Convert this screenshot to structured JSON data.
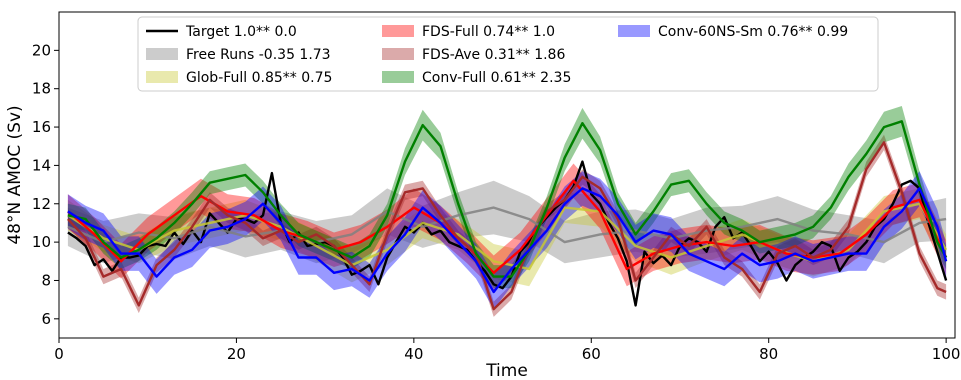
{
  "chart_data": {
    "type": "line",
    "title": "",
    "xlabel": "Time",
    "ylabel": "48°N AMOC (Sv)",
    "xlim": [
      0,
      101
    ],
    "ylim": [
      5,
      22
    ],
    "xticks": [
      0,
      20,
      40,
      60,
      80,
      100
    ],
    "yticks": [
      6,
      8,
      10,
      12,
      14,
      16,
      18,
      20
    ],
    "xtick_labels": [
      "0",
      "20",
      "40",
      "60",
      "80",
      "100"
    ],
    "ytick_labels": [
      "6",
      "8",
      "10",
      "12",
      "14",
      "16",
      "18",
      "20"
    ],
    "legend": {
      "placement": "top",
      "columns": 3
    },
    "series": [
      {
        "name": "Target 1.0** 0.0",
        "color": "#000000",
        "style": "line",
        "x": [
          1,
          2,
          3,
          4,
          5,
          6,
          7,
          8,
          9,
          10,
          11,
          12,
          13,
          14,
          15,
          16,
          17,
          18,
          19,
          20,
          21,
          22,
          23,
          24,
          25,
          26,
          27,
          28,
          29,
          30,
          31,
          32,
          33,
          34,
          35,
          36,
          37,
          38,
          39,
          40,
          41,
          42,
          43,
          44,
          45,
          46,
          47,
          48,
          49,
          50,
          51,
          52,
          53,
          54,
          55,
          56,
          57,
          58,
          59,
          60,
          61,
          62,
          63,
          64,
          65,
          66,
          67,
          68,
          69,
          70,
          71,
          72,
          73,
          74,
          75,
          76,
          77,
          78,
          79,
          80,
          81,
          82,
          83,
          84,
          85,
          86,
          87,
          88,
          89,
          90,
          91,
          92,
          93,
          94,
          95,
          96,
          97,
          98,
          99,
          100
        ],
        "values": [
          10.5,
          10.2,
          9.8,
          8.8,
          9.1,
          8.5,
          9.2,
          9.2,
          9.3,
          9.8,
          9.9,
          9.8,
          10.5,
          9.9,
          10.6,
          10.0,
          11.5,
          11.0,
          10.5,
          11.2,
          11.2,
          11.0,
          11.4,
          13.6,
          11.0,
          10.0,
          10.5,
          9.8,
          9.9,
          10.0,
          9.8,
          9.2,
          8.3,
          8.5,
          8.8,
          7.8,
          9.2,
          10.0,
          10.8,
          10.5,
          11.0,
          10.4,
          10.6,
          10.0,
          9.8,
          9.6,
          9.0,
          8.5,
          7.8,
          7.6,
          8.2,
          9.5,
          10.0,
          10.8,
          11.3,
          11.8,
          12.2,
          12.9,
          14.2,
          12.5,
          12.0,
          11.0,
          10.2,
          9.0,
          6.7,
          9.5,
          8.9,
          9.3,
          8.8,
          9.8,
          10.2,
          10.0,
          9.5,
          10.8,
          11.3,
          10.2,
          10.5,
          9.8,
          9.0,
          9.5,
          8.9,
          8.0,
          8.8,
          9.2,
          9.5,
          10.0,
          9.8,
          8.5,
          9.2,
          9.5,
          10.0,
          10.8,
          11.2,
          12.0,
          13.0,
          13.2,
          12.8,
          11.0,
          9.5,
          8.0
        ],
        "band": null
      },
      {
        "name": "Free Runs -0.35 1.73",
        "color": "#808080",
        "style": "band",
        "x": [
          1,
          5,
          9,
          13,
          17,
          21,
          25,
          29,
          33,
          37,
          41,
          45,
          49,
          53,
          57,
          61,
          65,
          69,
          73,
          77,
          81,
          85,
          89,
          93,
          97,
          100
        ],
        "values": [
          10.8,
          10.0,
          10.5,
          10.2,
          10.8,
          10.3,
          10.6,
          10.0,
          10.4,
          11.6,
          10.8,
          11.4,
          11.8,
          11.2,
          10.0,
          10.4,
          10.6,
          10.2,
          10.6,
          10.8,
          11.2,
          10.6,
          10.4,
          10.0,
          11.0,
          11.2
        ],
        "band": [
          1.0,
          1.1,
          1.0,
          1.1,
          1.0,
          1.1,
          1.0,
          1.1,
          1.0,
          1.2,
          1.1,
          1.2,
          1.4,
          1.2,
          1.1,
          1.2,
          1.1,
          1.0,
          1.2,
          1.1,
          1.2,
          1.1,
          1.0,
          1.1,
          1.0,
          1.1
        ]
      },
      {
        "name": "Glob-Full 0.85** 0.75",
        "color": "#c8c832",
        "style": "band",
        "x": [
          1,
          5,
          9,
          13,
          17,
          21,
          25,
          29,
          33,
          37,
          41,
          45,
          49,
          53,
          57,
          61,
          65,
          69,
          73,
          77,
          81,
          85,
          89,
          93,
          97,
          100
        ],
        "values": [
          11.4,
          10.2,
          9.6,
          10.6,
          11.0,
          11.4,
          10.8,
          9.8,
          8.8,
          9.6,
          11.0,
          10.4,
          9.0,
          8.6,
          11.8,
          11.6,
          9.8,
          9.2,
          9.8,
          10.4,
          9.6,
          9.0,
          9.6,
          11.6,
          12.0,
          9.6
        ],
        "band": [
          0.8,
          0.7,
          0.7,
          0.8,
          0.8,
          0.8,
          0.7,
          0.8,
          0.9,
          0.8,
          0.8,
          0.8,
          0.9,
          0.9,
          0.8,
          0.8,
          0.8,
          0.9,
          0.8,
          0.8,
          0.8,
          0.8,
          0.8,
          0.8,
          0.8,
          0.8
        ]
      },
      {
        "name": "FDS-Full 0.74** 1.0",
        "color": "#ff0000",
        "style": "line+band",
        "x": [
          1,
          4,
          7,
          10,
          13,
          16,
          19,
          22,
          25,
          28,
          31,
          34,
          37,
          40,
          43,
          46,
          49,
          52,
          55,
          58,
          61,
          64,
          67,
          70,
          73,
          76,
          79,
          82,
          85,
          88,
          91,
          94,
          97,
          100
        ],
        "values": [
          11.6,
          10.4,
          9.0,
          10.4,
          11.4,
          12.4,
          11.6,
          11.4,
          10.6,
          10.2,
          9.6,
          10.0,
          10.8,
          11.8,
          11.0,
          9.8,
          8.4,
          9.6,
          11.4,
          13.2,
          11.6,
          8.6,
          9.4,
          9.8,
          10.0,
          9.8,
          10.0,
          9.4,
          9.2,
          9.4,
          10.4,
          11.8,
          12.2,
          9.2
        ],
        "band": [
          0.9,
          0.9,
          0.9,
          0.9,
          0.9,
          0.9,
          0.9,
          0.9,
          0.9,
          0.9,
          0.9,
          0.9,
          0.9,
          1.0,
          0.9,
          0.9,
          0.9,
          0.9,
          0.9,
          0.9,
          0.9,
          0.9,
          0.9,
          0.9,
          0.9,
          0.9,
          0.9,
          0.9,
          0.9,
          0.9,
          0.9,
          0.9,
          0.9,
          0.9
        ]
      },
      {
        "name": "FDS-Ave 0.31** 1.86",
        "color": "#a52a2a",
        "style": "line+band",
        "x": [
          1,
          3,
          5,
          7,
          9,
          11,
          13,
          15,
          17,
          19,
          21,
          23,
          25,
          27,
          29,
          31,
          33,
          35,
          37,
          39,
          41,
          43,
          45,
          47,
          49,
          51,
          53,
          55,
          57,
          59,
          61,
          63,
          65,
          67,
          69,
          71,
          73,
          75,
          77,
          79,
          81,
          83,
          85,
          87,
          89,
          91,
          93,
          95,
          97,
          99,
          100
        ],
        "values": [
          11.2,
          10.2,
          8.2,
          8.6,
          6.7,
          8.8,
          9.6,
          10.8,
          12.2,
          11.4,
          11.0,
          10.2,
          10.6,
          10.0,
          10.4,
          9.8,
          8.8,
          7.8,
          10.4,
          12.6,
          12.8,
          11.4,
          10.2,
          9.4,
          6.5,
          7.4,
          9.8,
          11.6,
          12.2,
          13.4,
          12.8,
          11.2,
          8.0,
          9.2,
          10.4,
          9.8,
          10.8,
          9.2,
          8.6,
          7.4,
          9.4,
          9.8,
          9.2,
          9.6,
          10.8,
          13.8,
          15.2,
          12.6,
          9.4,
          7.6,
          7.4
        ],
        "band": [
          0.4,
          0.4,
          0.4,
          0.4,
          0.4,
          0.4,
          0.4,
          0.4,
          0.4,
          0.4,
          0.4,
          0.4,
          0.4,
          0.4,
          0.4,
          0.4,
          0.4,
          0.4,
          0.4,
          0.4,
          0.4,
          0.4,
          0.4,
          0.4,
          0.4,
          0.4,
          0.4,
          0.4,
          0.4,
          0.4,
          0.4,
          0.4,
          0.4,
          0.4,
          0.4,
          0.4,
          0.4,
          0.4,
          0.4,
          0.4,
          0.4,
          0.4,
          0.4,
          0.4,
          0.4,
          0.4,
          0.4,
          0.4,
          0.4,
          0.4,
          0.4
        ]
      },
      {
        "name": "Conv-Full 0.61** 2.35",
        "color": "#008000",
        "style": "line+band",
        "x": [
          1,
          3,
          5,
          7,
          9,
          11,
          13,
          15,
          17,
          19,
          21,
          23,
          25,
          27,
          29,
          31,
          33,
          35,
          37,
          39,
          41,
          43,
          45,
          47,
          49,
          51,
          53,
          55,
          57,
          59,
          61,
          63,
          65,
          67,
          69,
          71,
          73,
          75,
          77,
          79,
          81,
          83,
          85,
          87,
          89,
          91,
          93,
          95,
          97,
          99,
          100
        ],
        "values": [
          11.4,
          11.2,
          10.0,
          9.2,
          9.6,
          10.2,
          11.0,
          12.0,
          13.1,
          13.3,
          13.5,
          12.6,
          11.4,
          10.4,
          10.0,
          9.6,
          9.2,
          9.8,
          11.4,
          14.2,
          16.1,
          15.0,
          12.0,
          9.4,
          8.2,
          8.2,
          9.6,
          11.8,
          14.4,
          16.2,
          14.8,
          12.0,
          10.4,
          11.6,
          13.0,
          13.2,
          12.0,
          11.0,
          10.6,
          10.0,
          10.2,
          10.4,
          10.8,
          11.8,
          13.4,
          14.6,
          16.0,
          16.3,
          13.0,
          10.0,
          9.2
        ],
        "band": [
          0.6,
          0.6,
          0.6,
          0.6,
          0.6,
          0.6,
          0.6,
          0.6,
          0.6,
          0.6,
          0.6,
          0.6,
          0.6,
          0.6,
          0.6,
          0.6,
          0.6,
          0.6,
          0.6,
          0.7,
          0.8,
          0.7,
          0.6,
          0.6,
          0.6,
          0.6,
          0.6,
          0.6,
          0.7,
          0.8,
          0.7,
          0.6,
          0.6,
          0.6,
          0.6,
          0.6,
          0.6,
          0.6,
          0.6,
          0.6,
          0.6,
          0.6,
          0.6,
          0.6,
          0.7,
          0.7,
          0.8,
          0.8,
          0.7,
          0.6,
          0.6
        ]
      },
      {
        "name": "Conv-60NS-Sm 0.76** 0.99",
        "color": "#0000ff",
        "style": "line+band",
        "x": [
          1,
          3,
          5,
          7,
          9,
          11,
          13,
          15,
          17,
          19,
          21,
          23,
          25,
          27,
          29,
          31,
          33,
          35,
          37,
          39,
          41,
          43,
          45,
          47,
          49,
          51,
          53,
          55,
          57,
          59,
          61,
          63,
          65,
          67,
          69,
          71,
          73,
          75,
          77,
          79,
          81,
          83,
          85,
          87,
          89,
          91,
          93,
          95,
          97,
          99,
          100
        ],
        "values": [
          11.6,
          11.0,
          10.6,
          9.4,
          9.4,
          8.2,
          9.2,
          9.6,
          10.6,
          10.8,
          11.2,
          12.0,
          11.0,
          9.2,
          9.2,
          8.4,
          8.6,
          8.0,
          9.4,
          10.4,
          11.8,
          11.0,
          10.0,
          9.0,
          7.4,
          8.6,
          9.6,
          10.6,
          12.0,
          12.8,
          12.4,
          11.4,
          10.0,
          10.6,
          10.4,
          9.4,
          9.0,
          8.6,
          9.4,
          8.8,
          9.0,
          9.4,
          9.0,
          9.2,
          9.4,
          9.4,
          10.8,
          11.6,
          12.8,
          10.8,
          9.0
        ],
        "band": [
          0.9,
          0.9,
          0.9,
          0.9,
          0.9,
          0.9,
          0.9,
          0.9,
          0.9,
          0.9,
          0.9,
          0.9,
          0.9,
          0.9,
          0.9,
          0.9,
          0.9,
          0.9,
          0.9,
          0.9,
          0.9,
          0.9,
          0.9,
          0.9,
          0.9,
          0.9,
          0.9,
          0.9,
          0.9,
          0.9,
          0.9,
          0.9,
          0.9,
          0.9,
          0.9,
          0.9,
          0.9,
          0.9,
          0.9,
          0.9,
          0.9,
          0.9,
          0.9,
          0.9,
          0.9,
          0.9,
          0.9,
          0.9,
          0.9,
          0.9,
          0.9
        ]
      }
    ]
  }
}
